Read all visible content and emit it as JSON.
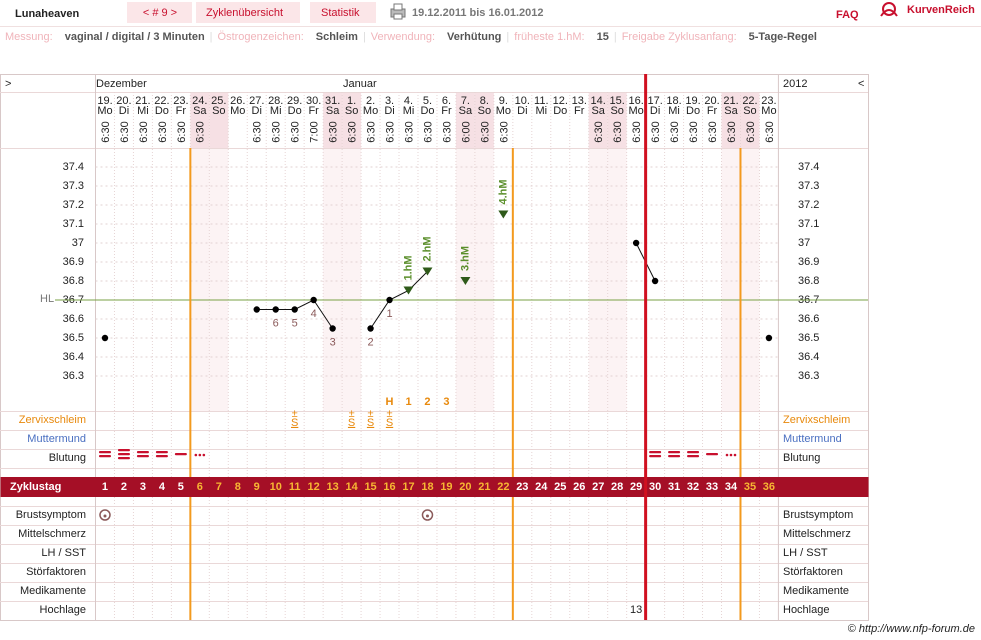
{
  "header": {
    "user": "Lunaheaven",
    "cycle_nav": "< # 9 >",
    "tabs": [
      "Zyklenübersicht",
      "Statistik"
    ],
    "date_range": "19.12.2011 bis 16.01.2012",
    "faq": "FAQ",
    "logo": "KurvenReich"
  },
  "info": {
    "separator": "|",
    "items": [
      {
        "label": "Messung:",
        "value": "vaginal / digital / 3 Minuten"
      },
      {
        "label": "Östrogenzeichen:",
        "value": "Schleim"
      },
      {
        "label": "Verwendung:",
        "value": "Verhütung"
      },
      {
        "label": "früheste 1.hM:",
        "value": 15
      },
      {
        "label": "Freigabe Zyklusanfang:",
        "value": "5-Tage-Regel"
      }
    ]
  },
  "chart": {
    "nav_left": ">",
    "nav_right": "<",
    "months": [
      "Dezember",
      "Januar"
    ],
    "year": "2012",
    "dates": [
      "19.",
      "20.",
      "21.",
      "22.",
      "23.",
      "24.",
      "25.",
      "26.",
      "27.",
      "28.",
      "29.",
      "30.",
      "31.",
      "1.",
      "2.",
      "3.",
      "4.",
      "5.",
      "6.",
      "7.",
      "8.",
      "9.",
      "10.",
      "11.",
      "12.",
      "13.",
      "14.",
      "15.",
      "16.",
      "17.",
      "18.",
      "19.",
      "20.",
      "21.",
      "22.",
      "23."
    ],
    "weekdays": [
      "Mo",
      "Di",
      "Mi",
      "Do",
      "Fr",
      "Sa",
      "So",
      "Mo",
      "Di",
      "Mi",
      "Do",
      "Fr",
      "Sa",
      "So",
      "Mo",
      "Di",
      "Mi",
      "Do",
      "Fr",
      "Sa",
      "So",
      "Mo",
      "Di",
      "Mi",
      "Do",
      "Fr",
      "Sa",
      "So",
      "Mo",
      "Di",
      "Mi",
      "Do",
      "Fr",
      "Sa",
      "So",
      "Mo"
    ],
    "times": [
      "6:30",
      "6:30",
      "6:30",
      "6:30",
      "6:30",
      "6:30",
      null,
      null,
      "6:30",
      "6:30",
      "6:30",
      "7:00",
      "6:30",
      "6:30",
      "6:30",
      "6:30",
      "6:30",
      "6:30",
      "6:30",
      "6:00",
      "6:30",
      "6:30",
      null,
      null,
      null,
      null,
      "6:30",
      "6:30",
      "6:30",
      "6:30",
      "6:30",
      "6:30",
      "6:30",
      "6:30",
      "6:30",
      "6:30"
    ],
    "ylim": [
      36.2,
      37.5
    ],
    "yticks": [
      36.3,
      36.4,
      36.5,
      36.6,
      36.7,
      36.8,
      36.9,
      37,
      37.1,
      37.2,
      37.3,
      37.4
    ],
    "temperatures": [
      36.5,
      null,
      null,
      null,
      null,
      null,
      null,
      null,
      36.65,
      36.65,
      36.65,
      36.7,
      36.55,
      null,
      36.55,
      36.7,
      36.75,
      36.85,
      null,
      36.8,
      null,
      37.15,
      null,
      null,
      null,
      null,
      null,
      null,
      37.0,
      36.8,
      null,
      null,
      null,
      null,
      null,
      36.5
    ],
    "count_labels": [
      null,
      null,
      null,
      null,
      null,
      null,
      null,
      null,
      null,
      6,
      5,
      4,
      3,
      null,
      2,
      1,
      null,
      null,
      null,
      null,
      null,
      null,
      null,
      null,
      null,
      null,
      null,
      null,
      null,
      null,
      null,
      null,
      null,
      null,
      null,
      null
    ],
    "hm_labels": [
      null,
      null,
      null,
      null,
      null,
      null,
      null,
      null,
      null,
      null,
      null,
      null,
      null,
      null,
      null,
      null,
      "1.hM",
      "2.hM",
      null,
      "3.hM",
      null,
      "4.hM",
      null,
      null,
      null,
      null,
      null,
      null,
      null,
      null,
      null,
      null,
      null,
      null,
      null,
      null
    ],
    "hl_label": "HL",
    "hl_value": 36.7,
    "cervix_peak": [
      null,
      null,
      null,
      null,
      null,
      null,
      null,
      null,
      null,
      null,
      null,
      null,
      null,
      null,
      null,
      "H",
      1,
      2,
      3,
      null,
      null,
      null,
      null,
      null,
      null,
      null,
      null,
      null,
      null,
      null,
      null,
      null,
      null,
      null,
      null,
      null
    ],
    "cervix_sign": "±",
    "cervix": [
      null,
      null,
      null,
      null,
      null,
      null,
      null,
      null,
      null,
      null,
      "S",
      null,
      null,
      "S",
      "S",
      "S",
      null,
      null,
      null,
      null,
      null,
      null,
      null,
      null,
      null,
      null,
      null,
      null,
      null,
      null,
      null,
      null,
      null,
      null,
      null,
      null
    ],
    "rows_top": [
      "Zervixschleim",
      "Muttermund",
      "Blutung"
    ],
    "cycle_day_label": "Zyklustag",
    "cycle_days": [
      1,
      2,
      3,
      4,
      5,
      6,
      7,
      8,
      9,
      10,
      11,
      12,
      13,
      14,
      15,
      16,
      17,
      18,
      19,
      20,
      21,
      22,
      23,
      24,
      25,
      26,
      27,
      28,
      29,
      30,
      31,
      32,
      33,
      34,
      35,
      36
    ],
    "rows_bottom": [
      "Brustsymptom",
      "Mittelschmerz",
      "LH / SST",
      "Störfaktoren",
      "Medikamente",
      "Hochlage"
    ],
    "hochlage": [
      null,
      null,
      null,
      null,
      null,
      null,
      null,
      null,
      null,
      null,
      null,
      null,
      null,
      null,
      null,
      null,
      null,
      null,
      null,
      null,
      null,
      null,
      null,
      null,
      null,
      null,
      null,
      null,
      13,
      null,
      null,
      null,
      null,
      null,
      null,
      null
    ]
  },
  "footer": "© http://www.nfp-forum.de"
}
